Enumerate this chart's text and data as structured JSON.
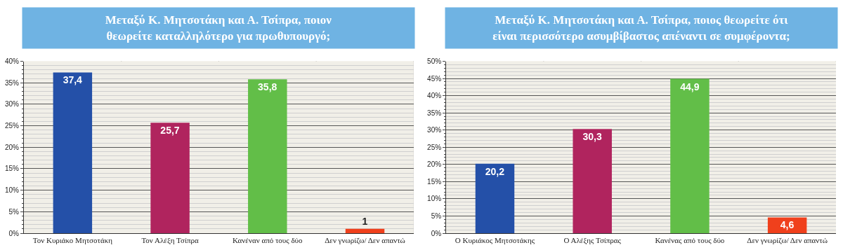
{
  "chart_data": [
    {
      "type": "bar",
      "title": "Μεταξύ Κ. Μητσοτάκη και Α. Τσίπρα, ποιον\nθεωρείτε καταλληλότερο για πρωθυπουργό;",
      "categories": [
        "Τον Κυριάκο Μητσοτάκη",
        "Τον Αλέξη Τσίπρα",
        "Κανέναν από τους δύο",
        "Δεν γνωρίζω/ Δεν απαντώ"
      ],
      "values": [
        37.4,
        25.7,
        35.8,
        1
      ],
      "colors": [
        "#2450a8",
        "#b0245e",
        "#62be48",
        "#f0401c"
      ],
      "value_labels": [
        "37,4",
        "25,7",
        "35,8",
        "1"
      ],
      "ylim": [
        0,
        40
      ],
      "yticks": [
        {
          "value": 0,
          "label": "0%"
        },
        {
          "value": 5,
          "label": "5%"
        },
        {
          "value": 10,
          "label": "10%"
        },
        {
          "value": 15,
          "label": "15%"
        },
        {
          "value": 20,
          "label": "20%"
        },
        {
          "value": 25,
          "label": "25%"
        },
        {
          "value": 30,
          "label": "30%"
        },
        {
          "value": 35,
          "label": "35%"
        },
        {
          "value": 40,
          "label": "40%"
        }
      ],
      "grid": true
    },
    {
      "type": "bar",
      "title": "Μεταξύ Κ. Μητσοτάκη και Α. Τσίπρα, ποιος θεωρείτε ότι\nείναι περισσότερο ασυμβίβαστος απέναντι σε συμφέροντα;",
      "categories": [
        "Ο Κυριάκος Μητσοτάκης",
        "Ο Αλέξης Τσίπρας",
        "Κανένας από τους δύο",
        "Δεν γνωρίζω/ Δεν απαντώ"
      ],
      "values": [
        20.2,
        30.3,
        44.9,
        4.6
      ],
      "colors": [
        "#2450a8",
        "#b0245e",
        "#62be48",
        "#f0401c"
      ],
      "value_labels": [
        "20,2",
        "30,3",
        "44,9",
        "4,6"
      ],
      "ylim": [
        0,
        50
      ],
      "yticks": [
        {
          "value": 0,
          "label": "0%"
        },
        {
          "value": 5,
          "label": "5%"
        },
        {
          "value": 10,
          "label": "10%"
        },
        {
          "value": 15,
          "label": "15%"
        },
        {
          "value": 20,
          "label": "20%"
        },
        {
          "value": 25,
          "label": "25%"
        },
        {
          "value": 30,
          "label": "30%"
        },
        {
          "value": 35,
          "label": "35%"
        },
        {
          "value": 40,
          "label": "40%"
        },
        {
          "value": 45,
          "label": "45%"
        },
        {
          "value": 50,
          "label": "50%"
        }
      ],
      "grid": true
    }
  ]
}
